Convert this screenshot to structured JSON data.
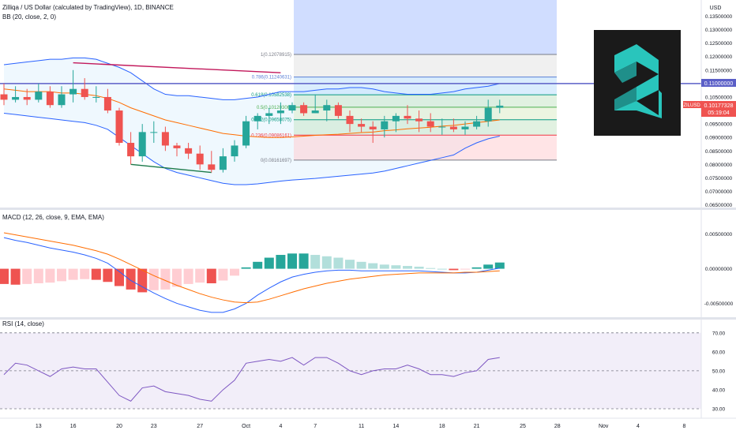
{
  "header": {
    "symbol_title": "Zilliqa / US Dollar (calculated by TradingView), 1D, BINANCE",
    "bb_label": "BB (20, close, 2, 0)",
    "macd_label": "MACD (12, 26, close, 9, EMA, EMA)",
    "rsi_label": "RSI (14, close)"
  },
  "price_scale": {
    "currency": "USD",
    "current_symbol": "ZILUSD",
    "current_price": "0.10177328",
    "countdown": "05:19:04",
    "line_price": "0.11000000"
  },
  "colors": {
    "up": "#26a69a",
    "down": "#ef5350",
    "bb": "#2962ff",
    "macd_line": "#2962ff",
    "signal_line": "#ff6d00",
    "rsi_line": "#7e57c2",
    "trend_top": "#c2185b",
    "trend_bottom": "#1b7a4a",
    "hline": "#5b5fc7"
  },
  "chart_data": [
    {
      "type": "candlestick",
      "panel": "price",
      "ylim": [
        0.064,
        0.141
      ],
      "y_ticks": [
        "0.14000000",
        "0.13500000",
        "0.13000000",
        "0.12500000",
        "0.12000000",
        "0.11500000",
        "0.11000000",
        "0.10500000",
        "0.10000000",
        "0.09500000",
        "0.09000000",
        "0.08500000",
        "0.08000000",
        "0.07500000",
        "0.07000000",
        "0.06500000"
      ],
      "x_ticks": [
        {
          "i": 3,
          "label": "13"
        },
        {
          "i": 6,
          "label": "16"
        },
        {
          "i": 10,
          "label": "20"
        },
        {
          "i": 13,
          "label": "23"
        },
        {
          "i": 17,
          "label": "27"
        },
        {
          "i": 21,
          "label": "Oct"
        },
        {
          "i": 24,
          "label": "4"
        },
        {
          "i": 27,
          "label": "7"
        },
        {
          "i": 31,
          "label": "11"
        },
        {
          "i": 34,
          "label": "14"
        },
        {
          "i": 38,
          "label": "18"
        },
        {
          "i": 41,
          "label": "21"
        },
        {
          "i": 45,
          "label": "25"
        },
        {
          "i": 48,
          "label": "28"
        },
        {
          "i": 52,
          "label": "Nov"
        },
        {
          "i": 55,
          "label": "4"
        },
        {
          "i": 59,
          "label": "8"
        }
      ],
      "candles": [
        [
          0.106,
          0.11,
          0.102,
          0.104
        ],
        [
          0.104,
          0.109,
          0.103,
          0.105
        ],
        [
          0.105,
          0.108,
          0.102,
          0.104
        ],
        [
          0.104,
          0.11,
          0.103,
          0.107
        ],
        [
          0.107,
          0.109,
          0.101,
          0.102
        ],
        [
          0.102,
          0.109,
          0.101,
          0.106
        ],
        [
          0.106,
          0.115,
          0.103,
          0.108
        ],
        [
          0.108,
          0.112,
          0.104,
          0.105
        ],
        [
          0.105,
          0.109,
          0.103,
          0.105
        ],
        [
          0.105,
          0.108,
          0.099,
          0.1
        ],
        [
          0.1,
          0.101,
          0.087,
          0.088
        ],
        [
          0.088,
          0.092,
          0.08,
          0.083
        ],
        [
          0.083,
          0.095,
          0.081,
          0.092
        ],
        [
          0.092,
          0.096,
          0.088,
          0.092
        ],
        [
          0.092,
          0.094,
          0.085,
          0.087
        ],
        [
          0.087,
          0.088,
          0.083,
          0.086
        ],
        [
          0.086,
          0.088,
          0.082,
          0.084
        ],
        [
          0.084,
          0.087,
          0.078,
          0.08
        ],
        [
          0.08,
          0.085,
          0.077,
          0.078
        ],
        [
          0.078,
          0.086,
          0.077,
          0.083
        ],
        [
          0.083,
          0.089,
          0.081,
          0.087
        ],
        [
          0.087,
          0.098,
          0.086,
          0.096
        ],
        [
          0.096,
          0.099,
          0.093,
          0.098
        ],
        [
          0.098,
          0.101,
          0.095,
          0.099
        ],
        [
          0.099,
          0.103,
          0.095,
          0.1
        ],
        [
          0.1,
          0.103,
          0.099,
          0.102
        ],
        [
          0.102,
          0.103,
          0.098,
          0.099
        ],
        [
          0.099,
          0.106,
          0.099,
          0.1
        ],
        [
          0.1,
          0.104,
          0.096,
          0.102
        ],
        [
          0.102,
          0.103,
          0.097,
          0.098
        ],
        [
          0.098,
          0.1,
          0.092,
          0.095
        ],
        [
          0.095,
          0.097,
          0.092,
          0.094
        ],
        [
          0.094,
          0.096,
          0.088,
          0.093
        ],
        [
          0.093,
          0.098,
          0.09,
          0.096
        ],
        [
          0.096,
          0.099,
          0.092,
          0.098
        ],
        [
          0.098,
          0.102,
          0.095,
          0.097
        ],
        [
          0.097,
          0.1,
          0.092,
          0.096
        ],
        [
          0.096,
          0.099,
          0.092,
          0.094
        ],
        [
          0.094,
          0.097,
          0.091,
          0.094
        ],
        [
          0.094,
          0.097,
          0.092,
          0.093
        ],
        [
          0.093,
          0.096,
          0.091,
          0.094
        ],
        [
          0.094,
          0.098,
          0.093,
          0.096
        ],
        [
          0.096,
          0.104,
          0.094,
          0.101
        ],
        [
          0.101,
          0.104,
          0.099,
          0.1018
        ]
      ],
      "bollinger": {
        "upper": [
          0.117,
          0.1175,
          0.118,
          0.1185,
          0.119,
          0.119,
          0.1195,
          0.1195,
          0.119,
          0.1175,
          0.116,
          0.114,
          0.111,
          0.108,
          0.106,
          0.1055,
          0.1055,
          0.105,
          0.1045,
          0.104,
          0.104,
          0.1045,
          0.105,
          0.106,
          0.107,
          0.107,
          0.107,
          0.1075,
          0.108,
          0.108,
          0.1085,
          0.1085,
          0.108,
          0.107,
          0.1065,
          0.106,
          0.106,
          0.106,
          0.1065,
          0.107,
          0.108,
          0.1085,
          0.109,
          0.11
        ],
        "middle": [
          0.108,
          0.1075,
          0.107,
          0.107,
          0.107,
          0.1065,
          0.1065,
          0.106,
          0.1055,
          0.1045,
          0.103,
          0.101,
          0.0995,
          0.098,
          0.0965,
          0.0955,
          0.0945,
          0.0935,
          0.0925,
          0.0915,
          0.091,
          0.0905,
          0.0902,
          0.09,
          0.09,
          0.0902,
          0.0905,
          0.0908,
          0.091,
          0.0912,
          0.0915,
          0.0918,
          0.092,
          0.0925,
          0.0928,
          0.0932,
          0.0935,
          0.0938,
          0.0942,
          0.0945,
          0.095,
          0.0955,
          0.096,
          0.0965
        ],
        "lower": [
          0.099,
          0.0985,
          0.098,
          0.0975,
          0.097,
          0.0965,
          0.096,
          0.0955,
          0.0945,
          0.093,
          0.09,
          0.087,
          0.084,
          0.081,
          0.0785,
          0.077,
          0.076,
          0.075,
          0.074,
          0.073,
          0.0725,
          0.0725,
          0.0728,
          0.0733,
          0.0738,
          0.0742,
          0.0745,
          0.0748,
          0.0752,
          0.0756,
          0.076,
          0.0764,
          0.0768,
          0.0775,
          0.0785,
          0.0795,
          0.0805,
          0.0815,
          0.0825,
          0.0835,
          0.086,
          0.088,
          0.0895,
          0.0905
        ]
      },
      "fibonacci": [
        {
          "ratio": "1",
          "value": 0.12078915,
          "label": "1(0.12078915)",
          "color": "#787b86"
        },
        {
          "ratio": "0.786",
          "value": 0.11240631,
          "label": "0.786(0.11240631)",
          "color": "#5a7fd6"
        },
        {
          "ratio": "0.618",
          "value": 0.10582538,
          "label": "0.618(0.10582538)",
          "color": "#089981"
        },
        {
          "ratio": "0.5",
          "value": 0.10120306,
          "label": "0.5(0.10120306)",
          "color": "#4caf50"
        },
        {
          "ratio": "0.382",
          "value": 0.09658075,
          "label": "0.382(0.09658075)",
          "color": "#089981"
        },
        {
          "ratio": "0.236",
          "value": 0.09086161,
          "label": "0.236(0.09086161)",
          "color": "#f23645"
        },
        {
          "ratio": "0",
          "value": 0.08161697,
          "label": "0(0.08161697)",
          "color": "#787b86"
        }
      ],
      "fib_range": {
        "start_i": 25,
        "end_i": 44
      },
      "horizontal_line": 0.11,
      "trend_lines": [
        {
          "name": "top",
          "from": [
            6,
            0.1177
          ],
          "to": [
            24,
            0.114
          ]
        },
        {
          "name": "bottom",
          "from": [
            11,
            0.08
          ],
          "to": [
            18,
            0.077
          ]
        }
      ]
    },
    {
      "type": "histogram+line",
      "panel": "macd",
      "ylim": [
        -0.007,
        0.0085
      ],
      "y_ticks": [
        "0.00500000",
        "0.00000000",
        "-0.00500000"
      ],
      "histogram": [
        -0.0022,
        -0.0023,
        -0.0022,
        -0.0021,
        -0.002,
        -0.0018,
        -0.0016,
        -0.0015,
        -0.0016,
        -0.0019,
        -0.0025,
        -0.003,
        -0.0034,
        -0.0031,
        -0.003,
        -0.0026,
        -0.0022,
        -0.002,
        -0.0021,
        -0.0017,
        -0.001,
        0.0002,
        0.001,
        0.0016,
        0.002,
        0.0022,
        0.0022,
        0.002,
        0.0018,
        0.0016,
        0.0013,
        0.001,
        0.0008,
        0.0006,
        0.0005,
        0.0004,
        0.0003,
        0.0001,
        0.0,
        -0.0002,
        -0.0001,
        0.0002,
        0.0006,
        0.0009
      ],
      "macd": [
        0.0045,
        0.0041,
        0.0038,
        0.0034,
        0.003,
        0.0027,
        0.0024,
        0.002,
        0.0015,
        0.0008,
        -0.0004,
        -0.0017,
        -0.0026,
        -0.0035,
        -0.0043,
        -0.005,
        -0.0055,
        -0.006,
        -0.0063,
        -0.0063,
        -0.0058,
        -0.005,
        -0.0038,
        -0.0028,
        -0.0019,
        -0.0012,
        -0.0008,
        -0.0005,
        -0.0003,
        -0.0002,
        -0.0002,
        -0.0003,
        -0.0003,
        -0.0003,
        -0.0003,
        -0.0003,
        -0.0003,
        -0.0004,
        -0.0005,
        -0.0006,
        -0.0006,
        -0.0005,
        -0.0002,
        0.0001
      ],
      "signal": [
        0.0052,
        0.0049,
        0.0046,
        0.0043,
        0.004,
        0.0037,
        0.0034,
        0.003,
        0.0026,
        0.0021,
        0.0014,
        0.0006,
        -0.0002,
        -0.001,
        -0.0017,
        -0.0024,
        -0.003,
        -0.0036,
        -0.0041,
        -0.0045,
        -0.0048,
        -0.0049,
        -0.0048,
        -0.0044,
        -0.0039,
        -0.0034,
        -0.0029,
        -0.0025,
        -0.0021,
        -0.0018,
        -0.0015,
        -0.0013,
        -0.0011,
        -0.0009,
        -0.0008,
        -0.0007,
        -0.0006,
        -0.0006,
        -0.0006,
        -0.0006,
        -0.0005,
        -0.0005,
        -0.0004,
        -0.0003
      ]
    },
    {
      "type": "line",
      "panel": "rsi",
      "ylim": [
        25,
        77
      ],
      "y_ticks": [
        "70.00",
        "60.00",
        "50.00",
        "40.00",
        "30.00"
      ],
      "band": [
        30,
        70
      ],
      "midline": 50,
      "values": [
        48,
        54,
        53,
        50,
        47,
        51,
        52,
        51,
        51,
        44,
        37,
        34,
        41,
        42,
        39,
        38,
        37,
        35,
        34,
        40,
        45,
        54,
        55,
        56,
        55,
        57,
        53,
        57,
        57,
        54,
        50,
        48,
        50,
        51,
        51,
        53,
        51,
        48,
        48,
        47,
        49,
        50,
        56,
        57
      ]
    }
  ]
}
